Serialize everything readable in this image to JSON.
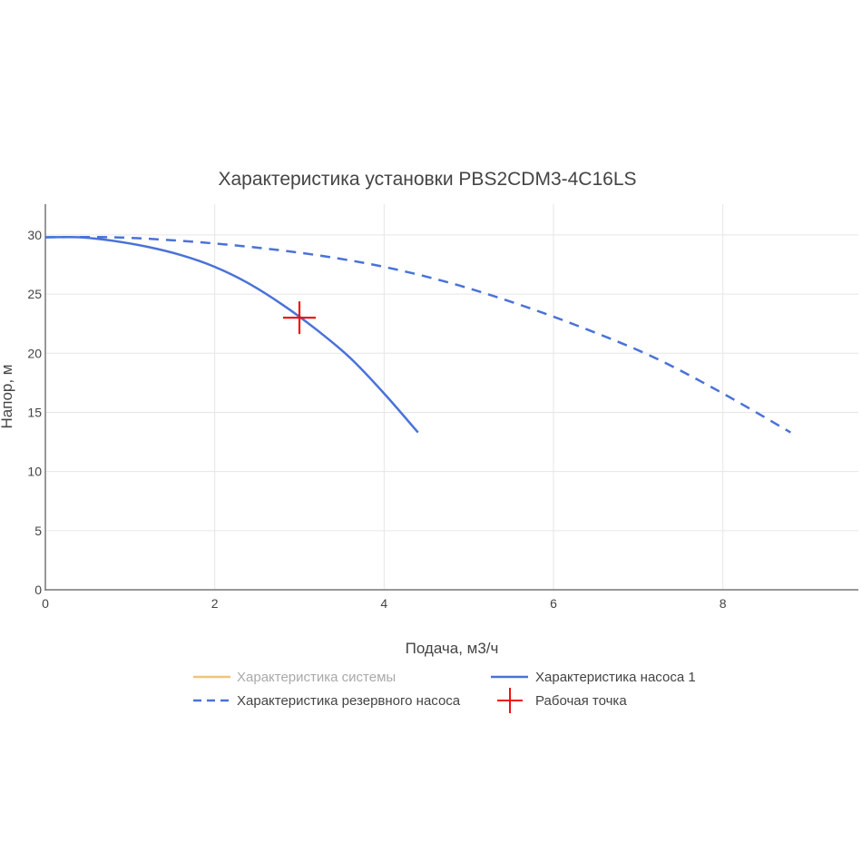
{
  "chart_data": {
    "type": "line",
    "title": "Характеристика установки PBS2CDM3-4C16LS",
    "xlabel": "Подача, м3/ч",
    "ylabel": "Напор, м",
    "xlim": [
      0,
      9.6
    ],
    "ylim": [
      0,
      32.6
    ],
    "xticks": [
      0,
      2,
      4,
      6,
      8
    ],
    "yticks": [
      0,
      5,
      10,
      15,
      20,
      25,
      30
    ],
    "grid": true,
    "legend_position": "bottom",
    "series": [
      {
        "name": "Характеристика системы",
        "style": "solid",
        "color": "#f2c27a",
        "muted": true,
        "x": [],
        "y": []
      },
      {
        "name": "Характеристика насоса 1",
        "style": "solid",
        "color": "#4a72d8",
        "x": [
          0,
          0.4,
          0.8,
          1.2,
          1.6,
          2.0,
          2.4,
          2.8,
          3.2,
          3.6,
          4.0,
          4.4
        ],
        "y": [
          29.8,
          29.8,
          29.5,
          29.0,
          28.3,
          27.3,
          25.9,
          24.1,
          22.0,
          19.6,
          16.6,
          13.3
        ]
      },
      {
        "name": "Характеристика резервного насоса",
        "style": "dash",
        "color": "#4a72d8",
        "x": [
          0,
          0.8,
          1.6,
          2.4,
          3.2,
          4.0,
          4.8,
          5.6,
          6.4,
          7.2,
          8.0,
          8.8
        ],
        "y": [
          29.8,
          29.8,
          29.5,
          29.0,
          28.3,
          27.3,
          25.9,
          24.1,
          22.0,
          19.6,
          16.6,
          13.3
        ]
      },
      {
        "name": "Рабочая точка",
        "style": "marker",
        "color": "#ee1111",
        "x": [
          3.0
        ],
        "y": [
          23.0
        ]
      }
    ]
  }
}
